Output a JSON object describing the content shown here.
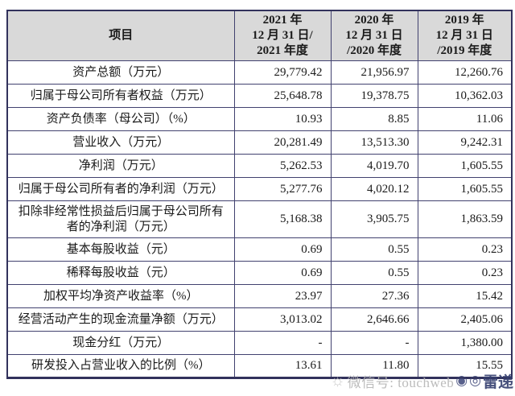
{
  "table": {
    "header": {
      "item": "项目",
      "col2021": [
        "2021 年",
        "12 月 31 日/",
        "2021 年度"
      ],
      "col2020": [
        "2020 年",
        "12 月 31 日",
        "/2020 年度"
      ],
      "col2019": [
        "2019 年",
        "12 月 31 日",
        "/2019 年度"
      ]
    },
    "rows": [
      {
        "label": "资产总额（万元）",
        "v2021": "29,779.42",
        "v2020": "21,956.97",
        "v2019": "12,260.76"
      },
      {
        "label": "归属于母公司所有者权益（万元）",
        "v2021": "25,648.78",
        "v2020": "19,378.75",
        "v2019": "10,362.03"
      },
      {
        "label": "资产负债率（母公司）（%）",
        "v2021": "10.93",
        "v2020": "8.85",
        "v2019": "11.06"
      },
      {
        "label": "营业收入（万元）",
        "v2021": "20,281.49",
        "v2020": "13,513.30",
        "v2019": "9,242.31"
      },
      {
        "label": "净利润（万元）",
        "v2021": "5,262.53",
        "v2020": "4,019.70",
        "v2019": "1,605.55"
      },
      {
        "label": "归属于母公司所有者的净利润（万元）",
        "v2021": "5,277.76",
        "v2020": "4,020.12",
        "v2019": "1,605.55"
      },
      {
        "label": "扣除非经常性损益后归属于母公司所有者的净利润（万元）",
        "v2021": "5,168.38",
        "v2020": "3,905.75",
        "v2019": "1,863.59"
      },
      {
        "label": "基本每股收益（元）",
        "v2021": "0.69",
        "v2020": "0.55",
        "v2019": "0.23"
      },
      {
        "label": "稀释每股收益（元）",
        "v2021": "0.69",
        "v2020": "0.55",
        "v2019": "0.23"
      },
      {
        "label": "加权平均净资产收益率（%）",
        "v2021": "23.97",
        "v2020": "27.36",
        "v2019": "15.42"
      },
      {
        "label": "经营活动产生的现金流量净额（万元）",
        "v2021": "3,013.02",
        "v2020": "2,646.66",
        "v2019": "2,405.06"
      },
      {
        "label": "现金分红（万元）",
        "v2021": "-",
        "v2020": "-",
        "v2019": "1,380.00"
      },
      {
        "label": "研发投入占营业收入的比例（%）",
        "v2021": "13.61",
        "v2020": "11.80",
        "v2019": "15.55"
      }
    ]
  },
  "watermark": {
    "wechat_label": "微信号: touchweb",
    "brand": "雷递"
  },
  "colors": {
    "border": "#41416f",
    "outer_border": "#32325c",
    "header_bg": "#d9d9d9",
    "watermark_gray": "#b5b5b5",
    "watermark_navy": "#343e6e"
  }
}
